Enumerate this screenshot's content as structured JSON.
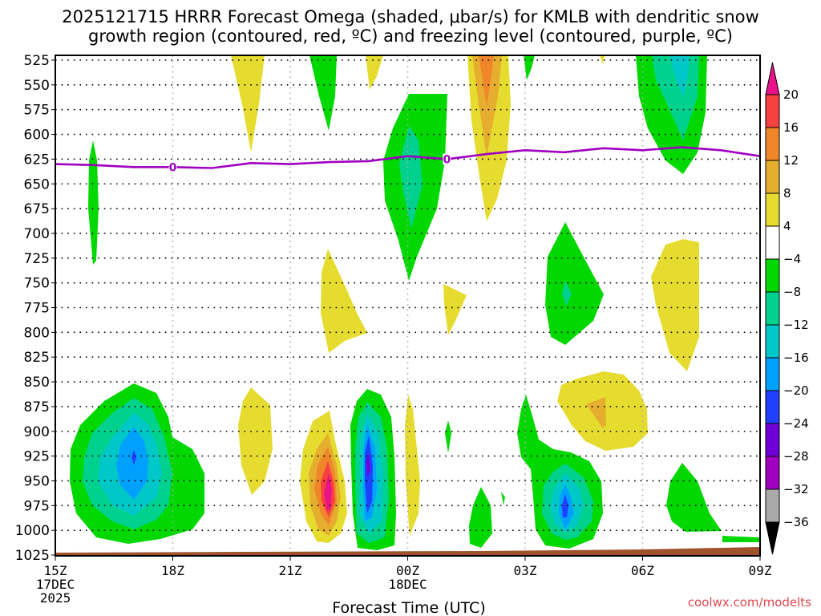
{
  "chart_data": {
    "type": "heatmap",
    "title_lines": [
      "2025121715 HRRR Forecast Omega (shaded, μbar/s) for KMLB with dendritic snow",
      "growth region (contoured, red, ºC) and freezing level (contoured, purple, ºC)"
    ],
    "xlabel": "Forecast Time (UTC)",
    "ylabel": "",
    "credit": "coolwx.com/modelts",
    "x_range_hours": [
      0,
      18
    ],
    "y_range_hpa": [
      525,
      1025
    ],
    "y_inverted": true,
    "grid": true,
    "x_ticks": [
      {
        "hour": 0,
        "lines": [
          "15Z",
          "17DEC",
          "2025"
        ]
      },
      {
        "hour": 3,
        "lines": [
          "18Z"
        ]
      },
      {
        "hour": 6,
        "lines": [
          "21Z"
        ]
      },
      {
        "hour": 9,
        "lines": [
          "00Z",
          "18DEC"
        ]
      },
      {
        "hour": 12,
        "lines": [
          "03Z"
        ]
      },
      {
        "hour": 15,
        "lines": [
          "06Z"
        ]
      },
      {
        "hour": 18,
        "lines": [
          "09Z"
        ]
      }
    ],
    "y_ticks": [
      525,
      550,
      575,
      600,
      625,
      650,
      675,
      700,
      725,
      750,
      775,
      800,
      825,
      850,
      875,
      900,
      925,
      950,
      975,
      1000,
      1025
    ],
    "colorbar": {
      "levels": [
        20,
        16,
        12,
        8,
        4,
        -4,
        -8,
        -12,
        -16,
        -20,
        -24,
        -28,
        -32,
        -36
      ],
      "bins": [
        {
          "range": "> 20",
          "color": "#e8128a"
        },
        {
          "range": "16 to 20",
          "color": "#f74040"
        },
        {
          "range": "12 to 16",
          "color": "#f0862a"
        },
        {
          "range": "8 to 12",
          "color": "#e6ae2e"
        },
        {
          "range": "4 to 8",
          "color": "#e6dc30"
        },
        {
          "range": "-4 to 4",
          "color": "#ffffff"
        },
        {
          "range": "-8 to -4",
          "color": "#00d800"
        },
        {
          "range": "-12 to -8",
          "color": "#00d28e"
        },
        {
          "range": "-16 to -12",
          "color": "#00c8c8"
        },
        {
          "range": "-20 to -16",
          "color": "#00a0ff"
        },
        {
          "range": "-24 to -20",
          "color": "#2040ff"
        },
        {
          "range": "-28 to -24",
          "color": "#7000d8"
        },
        {
          "range": "-32 to -28",
          "color": "#a000c0"
        },
        {
          "range": "-36 to -32",
          "color": "#aaaaaa"
        },
        {
          "range": "< -36",
          "color": "#000000"
        }
      ]
    },
    "freezing_level": {
      "label": "0",
      "color": "#a000c0",
      "points_hour_hpa": [
        [
          0,
          630
        ],
        [
          1,
          631
        ],
        [
          2,
          633
        ],
        [
          3,
          633
        ],
        [
          4,
          634
        ],
        [
          5,
          629
        ],
        [
          6,
          630
        ],
        [
          7,
          628
        ],
        [
          8,
          627
        ],
        [
          9,
          622
        ],
        [
          10,
          625
        ],
        [
          11,
          620
        ],
        [
          12,
          616
        ],
        [
          13,
          618
        ],
        [
          14,
          614
        ],
        [
          15,
          616
        ],
        [
          16,
          613
        ],
        [
          17,
          616
        ],
        [
          18,
          622
        ]
      ],
      "label_positions_hour": [
        3,
        10
      ]
    },
    "ground_color": "#a0522d",
    "omega_features": [
      {
        "name": "upward-core-17z",
        "center_hour": 2.1,
        "center_hpa": 900,
        "min_value": -24
      },
      {
        "name": "downward-core-22z",
        "center_hour": 7.0,
        "center_hpa": 940,
        "max_value": 20
      },
      {
        "name": "upward-core-23z",
        "center_hour": 8.0,
        "center_hpa": 905,
        "min_value": -28
      },
      {
        "name": "upward-core-04z",
        "center_hour": 13.0,
        "center_hpa": 945,
        "min_value": -24
      },
      {
        "name": "upward-mid-00z",
        "center_hour": 9.0,
        "center_hpa": 630,
        "min_value": -12
      },
      {
        "name": "downward-upper-02z",
        "center_hour": 11.0,
        "center_hpa": 540,
        "max_value": 16
      },
      {
        "name": "upward-upper-07z",
        "center_hour": 16.5,
        "center_hpa": 550,
        "min_value": -16
      },
      {
        "name": "downward-mid-05z",
        "center_hour": 14.5,
        "center_hpa": 835,
        "max_value": 12
      }
    ]
  }
}
